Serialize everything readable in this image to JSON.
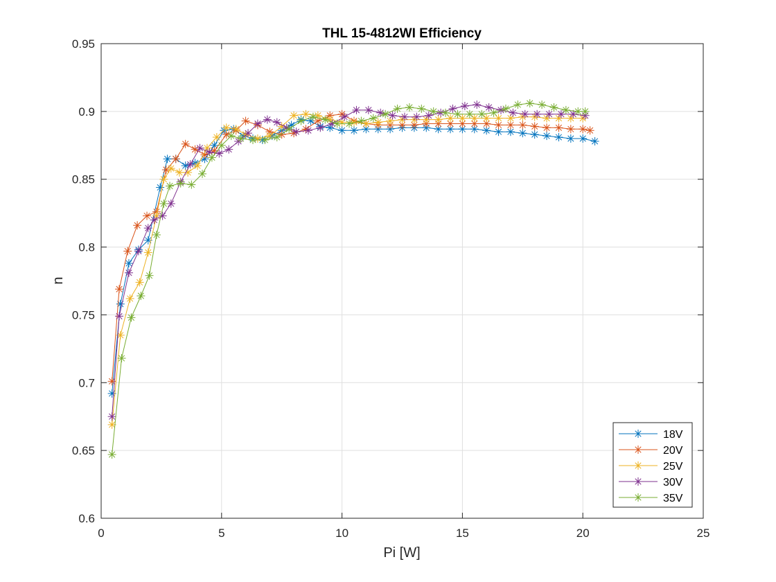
{
  "chart_data": {
    "type": "line",
    "title": "THL 15-4812WI Efficiency",
    "xlabel": "Pi [W]",
    "ylabel": "n",
    "xlim": [
      0,
      25
    ],
    "ylim": [
      0.6,
      0.95
    ],
    "xticks": [
      0,
      5,
      10,
      15,
      20,
      25
    ],
    "yticks": [
      0.6,
      0.65,
      0.7,
      0.75,
      0.8,
      0.85,
      0.9,
      0.95
    ],
    "xtick_labels": [
      "0",
      "5",
      "10",
      "15",
      "20",
      "25"
    ],
    "ytick_labels": [
      "0.6",
      "0.65",
      "0.7",
      "0.75",
      "0.8",
      "0.85",
      "0.9",
      "0.95"
    ],
    "grid": true,
    "legend_position": "bottom-right",
    "marker": "asterisk",
    "series": [
      {
        "name": "18V",
        "color": "#0072BD",
        "x": [
          0.45,
          0.8,
          1.15,
          1.55,
          1.95,
          2.45,
          2.75,
          3.1,
          3.5,
          3.9,
          4.3,
          4.7,
          5.1,
          5.5,
          5.9,
          6.3,
          6.7,
          7.1,
          7.5,
          7.9,
          8.3,
          8.7,
          9.1,
          9.5,
          10.0,
          10.5,
          11.0,
          11.5,
          12.0,
          12.5,
          13.0,
          13.5,
          14.0,
          14.5,
          15.0,
          15.5,
          16.0,
          16.5,
          17.0,
          17.5,
          18.0,
          18.5,
          19.0,
          19.5,
          20.0,
          20.5
        ],
        "y": [
          0.692,
          0.758,
          0.788,
          0.798,
          0.805,
          0.844,
          0.865,
          0.865,
          0.86,
          0.862,
          0.865,
          0.875,
          0.886,
          0.887,
          0.882,
          0.88,
          0.879,
          0.882,
          0.886,
          0.89,
          0.894,
          0.893,
          0.889,
          0.888,
          0.886,
          0.886,
          0.887,
          0.887,
          0.887,
          0.888,
          0.888,
          0.888,
          0.887,
          0.887,
          0.887,
          0.887,
          0.886,
          0.885,
          0.885,
          0.884,
          0.883,
          0.882,
          0.881,
          0.88,
          0.88,
          0.878
        ]
      },
      {
        "name": "20V",
        "color": "#D95319",
        "x": [
          0.45,
          0.75,
          1.1,
          1.5,
          1.9,
          2.3,
          2.7,
          3.1,
          3.5,
          3.9,
          4.3,
          4.7,
          5.2,
          5.6,
          6.0,
          6.5,
          7.0,
          7.5,
          8.0,
          8.5,
          9.0,
          9.5,
          10.0,
          10.5,
          11.0,
          11.5,
          12.0,
          12.5,
          13.0,
          13.5,
          14.0,
          14.5,
          15.0,
          15.5,
          16.0,
          16.5,
          17.0,
          17.5,
          18.0,
          18.5,
          19.0,
          19.5,
          20.0,
          20.3
        ],
        "y": [
          0.701,
          0.769,
          0.797,
          0.816,
          0.823,
          0.826,
          0.857,
          0.865,
          0.876,
          0.872,
          0.868,
          0.871,
          0.883,
          0.886,
          0.893,
          0.89,
          0.885,
          0.883,
          0.884,
          0.887,
          0.893,
          0.897,
          0.898,
          0.893,
          0.891,
          0.89,
          0.89,
          0.89,
          0.89,
          0.891,
          0.891,
          0.891,
          0.891,
          0.891,
          0.891,
          0.89,
          0.89,
          0.89,
          0.889,
          0.888,
          0.888,
          0.887,
          0.887,
          0.886
        ]
      },
      {
        "name": "25V",
        "color": "#EDB120",
        "x": [
          0.45,
          0.8,
          1.2,
          1.6,
          1.95,
          2.3,
          2.6,
          2.9,
          3.25,
          3.6,
          4.0,
          4.4,
          4.8,
          5.2,
          5.6,
          6.0,
          6.5,
          7.0,
          7.5,
          8.0,
          8.5,
          9.0,
          9.5,
          10.0,
          10.5,
          11.0,
          11.5,
          12.0,
          12.5,
          13.0,
          13.5,
          14.0,
          14.5,
          15.0,
          15.5,
          16.0,
          16.5,
          17.0,
          17.5,
          18.0,
          18.5,
          19.0,
          19.5,
          20.0
        ],
        "y": [
          0.669,
          0.735,
          0.762,
          0.774,
          0.796,
          0.823,
          0.85,
          0.858,
          0.855,
          0.855,
          0.86,
          0.873,
          0.881,
          0.888,
          0.887,
          0.883,
          0.88,
          0.882,
          0.889,
          0.897,
          0.898,
          0.897,
          0.894,
          0.892,
          0.892,
          0.891,
          0.892,
          0.893,
          0.894,
          0.894,
          0.894,
          0.894,
          0.895,
          0.895,
          0.895,
          0.895,
          0.895,
          0.895,
          0.896,
          0.896,
          0.895,
          0.895,
          0.895,
          0.895
        ]
      },
      {
        "name": "30V",
        "color": "#7E2F8E",
        "x": [
          0.45,
          0.75,
          1.15,
          1.55,
          1.95,
          2.2,
          2.55,
          2.9,
          3.3,
          3.7,
          4.1,
          4.5,
          4.9,
          5.3,
          5.7,
          6.1,
          6.5,
          6.9,
          7.3,
          7.7,
          8.1,
          8.6,
          9.1,
          9.6,
          10.1,
          10.6,
          11.1,
          11.6,
          12.1,
          12.6,
          13.1,
          13.6,
          14.1,
          14.6,
          15.1,
          15.6,
          16.1,
          16.6,
          17.1,
          17.6,
          18.1,
          18.6,
          19.1,
          19.6,
          20.1
        ],
        "y": [
          0.675,
          0.749,
          0.781,
          0.797,
          0.814,
          0.82,
          0.823,
          0.832,
          0.848,
          0.861,
          0.873,
          0.87,
          0.869,
          0.872,
          0.878,
          0.884,
          0.891,
          0.894,
          0.892,
          0.888,
          0.885,
          0.886,
          0.888,
          0.891,
          0.896,
          0.901,
          0.901,
          0.899,
          0.897,
          0.896,
          0.896,
          0.897,
          0.899,
          0.902,
          0.904,
          0.905,
          0.903,
          0.901,
          0.899,
          0.898,
          0.898,
          0.898,
          0.898,
          0.898,
          0.897
        ]
      },
      {
        "name": "35V",
        "color": "#77AC30",
        "x": [
          0.45,
          0.85,
          1.25,
          1.65,
          2.0,
          2.3,
          2.6,
          2.85,
          3.3,
          3.75,
          4.2,
          4.6,
          5.0,
          5.4,
          5.8,
          6.3,
          6.8,
          7.3,
          7.8,
          8.3,
          8.8,
          9.3,
          9.8,
          10.3,
          10.8,
          11.3,
          11.8,
          12.3,
          12.8,
          13.3,
          13.8,
          14.3,
          14.8,
          15.3,
          15.8,
          16.3,
          16.8,
          17.3,
          17.8,
          18.3,
          18.8,
          19.3,
          19.8,
          20.1
        ],
        "y": [
          0.647,
          0.718,
          0.748,
          0.764,
          0.779,
          0.809,
          0.832,
          0.845,
          0.847,
          0.846,
          0.854,
          0.866,
          0.875,
          0.882,
          0.88,
          0.879,
          0.879,
          0.881,
          0.887,
          0.893,
          0.896,
          0.894,
          0.891,
          0.891,
          0.893,
          0.895,
          0.898,
          0.902,
          0.903,
          0.902,
          0.9,
          0.899,
          0.898,
          0.898,
          0.898,
          0.899,
          0.902,
          0.905,
          0.906,
          0.905,
          0.903,
          0.901,
          0.9,
          0.9
        ]
      }
    ]
  }
}
